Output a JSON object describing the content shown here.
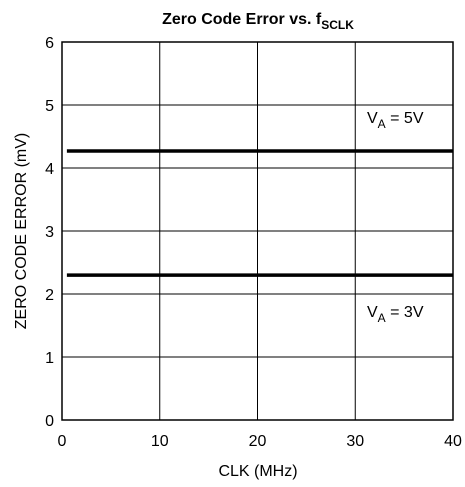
{
  "chart_data": {
    "type": "line",
    "title": [
      "Zero Code Error vs. f",
      "SCLK"
    ],
    "x_label": "CLK (MHz)",
    "y_label": "ZERO CODE ERROR (mV)",
    "series": [
      {
        "name": [
          "V",
          "A",
          " = 5V"
        ],
        "color": "#000000",
        "x": [
          0.5,
          40
        ],
        "values": [
          4.27,
          4.27
        ]
      },
      {
        "name": [
          "V",
          "A",
          " = 3V"
        ],
        "color": "#000000",
        "x": [
          0.5,
          40
        ],
        "values": [
          2.3,
          2.3
        ]
      }
    ],
    "xlim": [
      0,
      40
    ],
    "xticks": [
      0,
      10,
      20,
      30,
      40
    ],
    "ylim": [
      0,
      6
    ],
    "yticks": [
      0,
      1,
      2,
      3,
      4,
      5,
      6
    ],
    "grid": true
  }
}
